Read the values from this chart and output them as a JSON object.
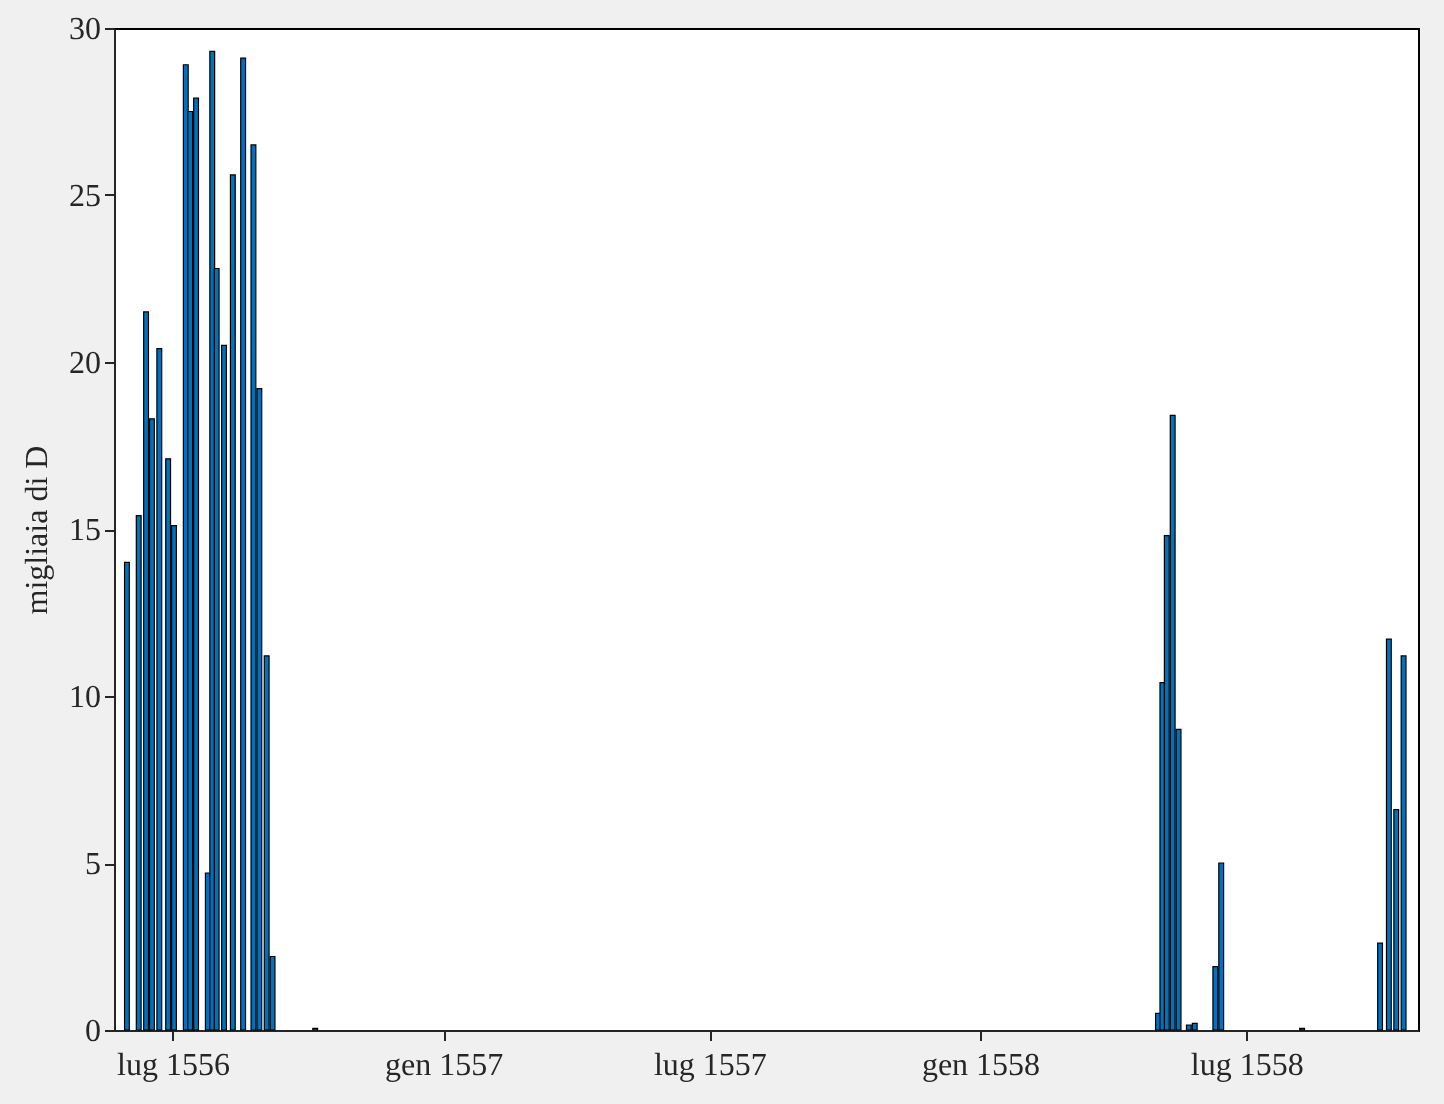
{
  "chart_data": {
    "type": "bar",
    "ylabel": "migliaia di D",
    "x": [
      "1556-05-31",
      "1556-06-08",
      "1556-06-13",
      "1556-06-17",
      "1556-06-22",
      "1556-06-28",
      "1556-07-02",
      "1556-07-10",
      "1556-07-13",
      "1556-07-17",
      "1556-07-25",
      "1556-07-28",
      "1556-07-31",
      "1556-08-05",
      "1556-08-11",
      "1556-08-18",
      "1556-08-25",
      "1556-08-29",
      "1556-09-03",
      "1556-09-07",
      "1556-10-06",
      "1558-05-02",
      "1558-05-05",
      "1558-05-08",
      "1558-05-12",
      "1558-05-16",
      "1558-05-23",
      "1558-05-27",
      "1558-06-10",
      "1558-06-14",
      "1558-08-08",
      "1558-09-30",
      "1558-10-06",
      "1558-10-11",
      "1558-10-16"
    ],
    "values": [
      14.0,
      15.4,
      21.5,
      18.3,
      20.4,
      17.1,
      15.1,
      28.9,
      27.5,
      27.9,
      4.7,
      29.3,
      22.8,
      20.5,
      25.6,
      29.1,
      26.5,
      19.2,
      11.2,
      2.2,
      0.05,
      0.5,
      10.4,
      14.8,
      18.4,
      9.0,
      0.15,
      0.2,
      1.9,
      5.0,
      0.05,
      2.6,
      11.7,
      6.6,
      11.2
    ],
    "color": "#0072bd",
    "xlim": [
      "1556-05-29",
      "1558-10-19"
    ],
    "xticks": [
      {
        "value": "1556-07-01",
        "label": "lug 1556"
      },
      {
        "value": "1557-01-01",
        "label": "gen 1557"
      },
      {
        "value": "1557-07-01",
        "label": "lug 1557"
      },
      {
        "value": "1558-01-01",
        "label": "gen 1558"
      },
      {
        "value": "1558-07-01",
        "label": "lug 1558"
      }
    ],
    "ylim": [
      0,
      30
    ],
    "yticks": [
      0,
      5,
      10,
      15,
      20,
      25,
      30
    ],
    "grid": false
  }
}
